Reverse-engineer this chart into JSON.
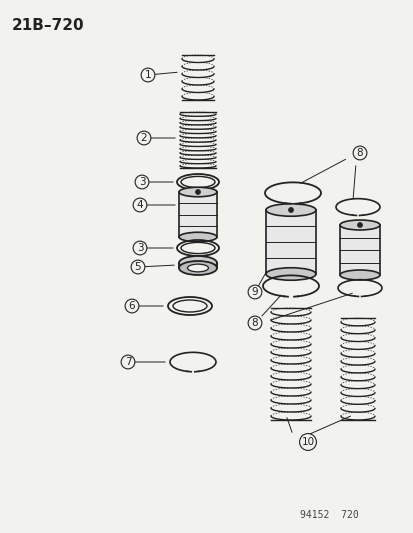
{
  "title": "21B–720",
  "footer": "94152  720",
  "bg_color": "#f2f2ee",
  "line_color": "#222222",
  "figsize": [
    4.14,
    5.33
  ],
  "dpi": 100
}
